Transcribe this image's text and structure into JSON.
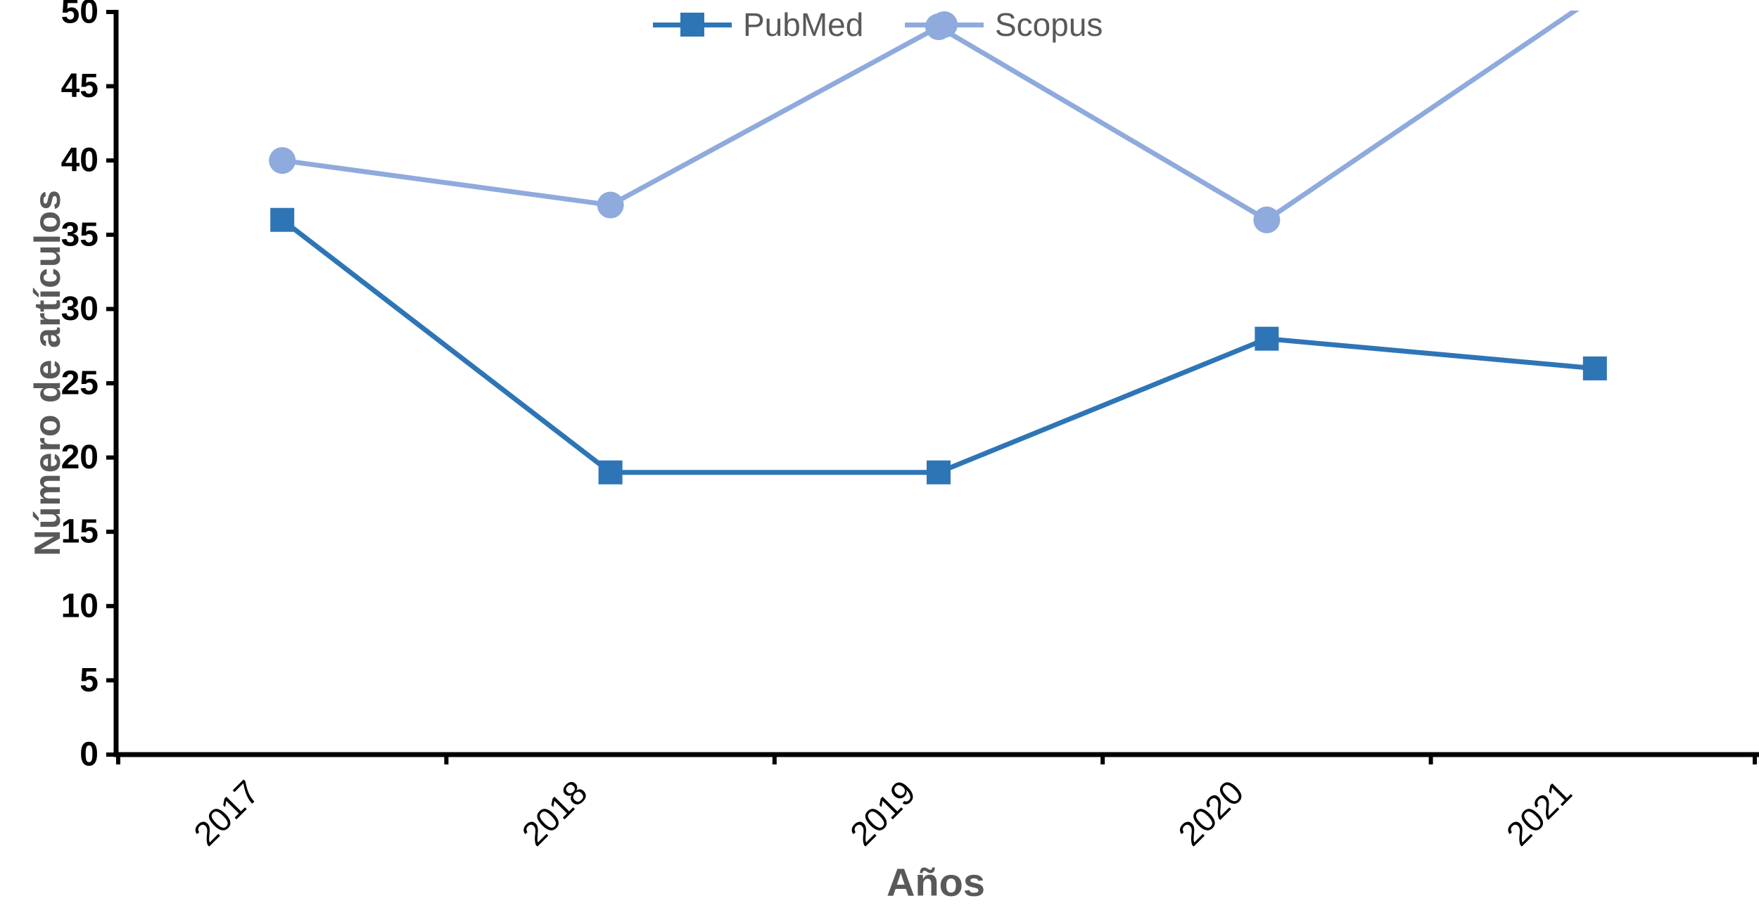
{
  "chart_data": {
    "type": "line",
    "title": "",
    "categories": [
      "2017",
      "2018",
      "2019",
      "2020",
      "2021"
    ],
    "series": [
      {
        "name": "PubMed",
        "values": [
          36,
          19,
          19,
          28,
          26
        ],
        "color": "#2E75B6",
        "marker": "square"
      },
      {
        "name": "Scopus",
        "values": [
          40,
          37,
          49,
          36,
          51
        ],
        "color": "#8FAADC",
        "marker": "circle"
      }
    ],
    "xlabel": "Años",
    "ylabel": "Número de artículos",
    "ylim": [
      0,
      50
    ],
    "ytick_step": 5,
    "ytick_labels": [
      "0",
      "5",
      "10",
      "15",
      "20",
      "25",
      "30",
      "35",
      "40",
      "45",
      "50"
    ],
    "grid": false,
    "legend_position": "top-center",
    "note": "Scopus 2021 segment is clipped at the axis maximum (50); implied value ~51"
  },
  "colors": {
    "pubmed": "#2E75B6",
    "scopus": "#8FAADC",
    "axis": "#000000",
    "gray_text": "#595959"
  }
}
